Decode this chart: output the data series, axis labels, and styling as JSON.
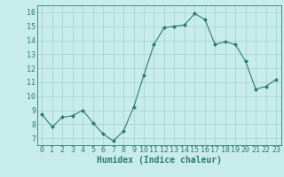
{
  "x": [
    0,
    1,
    2,
    3,
    4,
    5,
    6,
    7,
    8,
    9,
    10,
    11,
    12,
    13,
    14,
    15,
    16,
    17,
    18,
    19,
    20,
    21,
    22,
    23
  ],
  "y": [
    8.7,
    7.8,
    8.5,
    8.6,
    9.0,
    8.1,
    7.3,
    6.8,
    7.5,
    9.2,
    11.5,
    13.7,
    14.9,
    15.0,
    15.1,
    15.9,
    15.5,
    13.7,
    13.9,
    13.7,
    12.5,
    10.5,
    10.7,
    11.2
  ],
  "xlabel": "Humidex (Indice chaleur)",
  "xlim": [
    -0.5,
    23.5
  ],
  "ylim": [
    6.5,
    16.5
  ],
  "yticks": [
    7,
    8,
    9,
    10,
    11,
    12,
    13,
    14,
    15,
    16
  ],
  "xticks": [
    0,
    1,
    2,
    3,
    4,
    5,
    6,
    7,
    8,
    9,
    10,
    11,
    12,
    13,
    14,
    15,
    16,
    17,
    18,
    19,
    20,
    21,
    22,
    23
  ],
  "line_color": "#2d7b6e",
  "marker": "D",
  "marker_size": 2,
  "bg_color": "#c8ecec",
  "grid_color": "#aad4d4",
  "axis_color": "#2d7b6e",
  "label_fontsize": 7,
  "tick_fontsize": 6
}
